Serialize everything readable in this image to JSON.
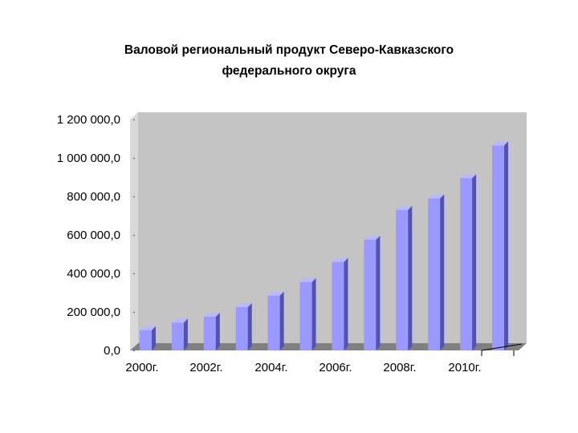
{
  "chart_data": {
    "type": "bar",
    "title": [
      "Валовой региональный продукт Северо-Кавказского",
      "федерального округа"
    ],
    "xlabel": "",
    "ylabel": "",
    "ylim": [
      0,
      1200000
    ],
    "yticks": [
      "0,0",
      "200 000,0",
      "400 000,0",
      "600 000,0",
      "800 000,0",
      "1 000 000,0",
      "1 200 000,0"
    ],
    "xtick_labels": [
      "2000г.",
      "2002г.",
      "2004г.",
      "2006г.",
      "2008г.",
      "2010г."
    ],
    "categories": [
      "2000",
      "2001",
      "2002",
      "2003",
      "2004",
      "2005",
      "2006",
      "2007",
      "2008",
      "2009",
      "2010",
      "2011"
    ],
    "values": [
      105000,
      145000,
      175000,
      225000,
      285000,
      355000,
      460000,
      575000,
      730000,
      790000,
      895000,
      1065000
    ],
    "grid": false,
    "legend": "none",
    "colors": {
      "bar_front": "#9999ff",
      "bar_side": "#5252b0",
      "bar_top": "#b8b8ff",
      "back_wall": "#c4c4c4",
      "floor": "#808080"
    }
  }
}
